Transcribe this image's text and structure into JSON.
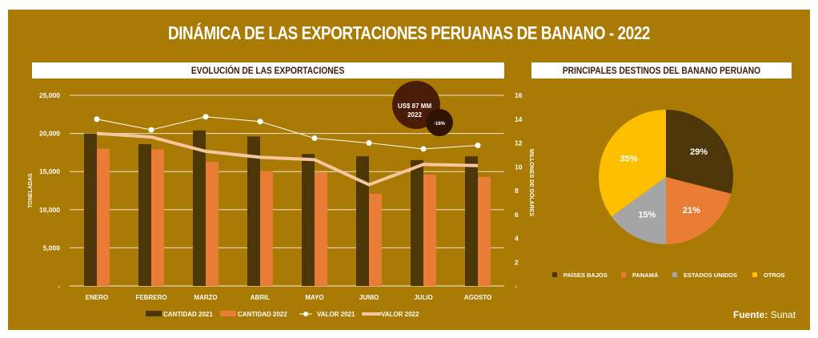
{
  "title": "DINÁMICA DE LAS EXPORTACIONES PERUANAS DE BANANO - 2022",
  "colors": {
    "background": "#a97a04",
    "cantidad_2021": "#4d3608",
    "cantidad_2022": "#ea7d35",
    "valor_2021": "#ffffff",
    "valor_2022": "#f5c7a0",
    "paises_bajos": "#4d3608",
    "panama": "#ea7d35",
    "estados_unidos": "#a5a5a5",
    "otros": "#fdbf00"
  },
  "chart_data": [
    {
      "type": "bar+line",
      "title": "EVOLUCIÓN DE LAS EXPORTACIONES",
      "ylabel": "TONELADAS",
      "y2label": "MILLONES DE DÓLARES",
      "ylim": [
        0,
        25000
      ],
      "y2lim": [
        0,
        16
      ],
      "yticks": [
        "-",
        "5,000",
        "10,000",
        "15,000",
        "20,000",
        "25,000"
      ],
      "y2ticks": [
        "-",
        "2",
        "4",
        "6",
        "8",
        "10",
        "12",
        "14",
        "16"
      ],
      "grid": true,
      "legend": "bottom",
      "categories": [
        "ENERO",
        "FEBRERO",
        "MARZO",
        "ABRIL",
        "MAYO",
        "JUNIO",
        "JULIO",
        "AGOSTO"
      ],
      "series": [
        {
          "name": "CANTIDAD 2021",
          "type": "bar",
          "axis": "left",
          "values": [
            20000,
            18600,
            20400,
            19600,
            17300,
            17000,
            16500,
            17000
          ]
        },
        {
          "name": "CANTIDAD 2022",
          "type": "bar",
          "axis": "left",
          "values": [
            18000,
            17900,
            16300,
            15100,
            14900,
            12100,
            14600,
            14300
          ]
        },
        {
          "name": "VALOR 2021",
          "type": "line",
          "axis": "right",
          "values": [
            14.0,
            13.1,
            14.2,
            13.8,
            12.4,
            12.0,
            11.5,
            11.8
          ]
        },
        {
          "name": "VALOR 2022",
          "type": "line",
          "axis": "right",
          "values": [
            12.8,
            12.5,
            11.3,
            10.8,
            10.6,
            8.5,
            10.2,
            10.1
          ]
        }
      ],
      "annotation": {
        "line1": "US$ 87 MM",
        "line2": "2022",
        "change": "-16%"
      }
    },
    {
      "type": "pie",
      "title": "PRINCIPALES DESTINOS DEL BANANO PERUANO",
      "legend": "bottom",
      "categories": [
        "PAÍSES BAJOS",
        "PANAMÁ",
        "ESTADOS UNIDOS",
        "OTROS"
      ],
      "values": [
        29,
        21,
        15,
        35
      ],
      "labels": [
        "29%",
        "21%",
        "15%",
        "35%"
      ]
    }
  ],
  "source": {
    "label": "Fuente:",
    "value": "Sunat"
  }
}
